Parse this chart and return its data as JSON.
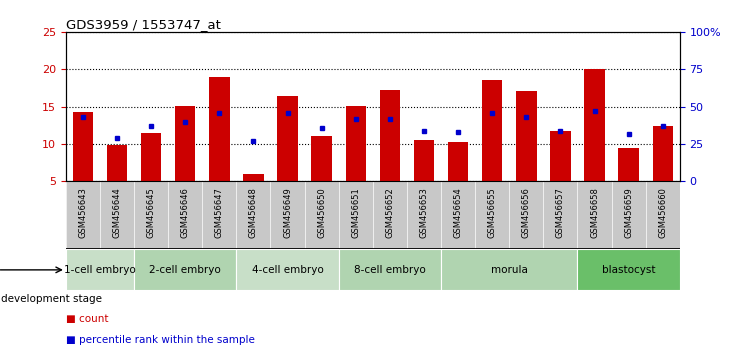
{
  "title": "GDS3959 / 1553747_at",
  "samples": [
    "GSM456643",
    "GSM456644",
    "GSM456645",
    "GSM456646",
    "GSM456647",
    "GSM456648",
    "GSM456649",
    "GSM456650",
    "GSM456651",
    "GSM456652",
    "GSM456653",
    "GSM456654",
    "GSM456655",
    "GSM456656",
    "GSM456657",
    "GSM456658",
    "GSM456659",
    "GSM456660"
  ],
  "count_values": [
    14.3,
    9.9,
    11.5,
    15.1,
    19.0,
    6.0,
    16.4,
    11.1,
    15.1,
    17.2,
    10.5,
    10.3,
    18.5,
    17.1,
    11.7,
    20.1,
    9.5,
    12.4
  ],
  "percentile_values": [
    43,
    29,
    37,
    40,
    46,
    27,
    46,
    36,
    42,
    42,
    34,
    33,
    46,
    43,
    34,
    47,
    32,
    37
  ],
  "bar_color": "#cc0000",
  "dot_color": "#0000cc",
  "ylim_left": [
    5,
    25
  ],
  "ylim_right": [
    0,
    100
  ],
  "yticks_left": [
    5,
    10,
    15,
    20,
    25
  ],
  "yticks_right": [
    0,
    25,
    50,
    75,
    100
  ],
  "ytick_labels_right": [
    "0",
    "25",
    "50",
    "75",
    "100%"
  ],
  "groups": [
    {
      "label": "1-cell embryo",
      "start": 0,
      "end": 2
    },
    {
      "label": "2-cell embryo",
      "start": 2,
      "end": 5
    },
    {
      "label": "4-cell embryo",
      "start": 5,
      "end": 8
    },
    {
      "label": "8-cell embryo",
      "start": 8,
      "end": 11
    },
    {
      "label": "morula",
      "start": 11,
      "end": 15
    },
    {
      "label": "blastocyst",
      "start": 15,
      "end": 18
    }
  ],
  "group_colors": [
    "#c8dfc8",
    "#b0d4b0",
    "#c8dfc8",
    "#b0d4b0",
    "#b0d4b0",
    "#6abf69"
  ],
  "label_bg_color": "#c8c8c8",
  "legend_count_label": "count",
  "legend_percentile_label": "percentile rank within the sample",
  "dev_stage_label": "development stage"
}
